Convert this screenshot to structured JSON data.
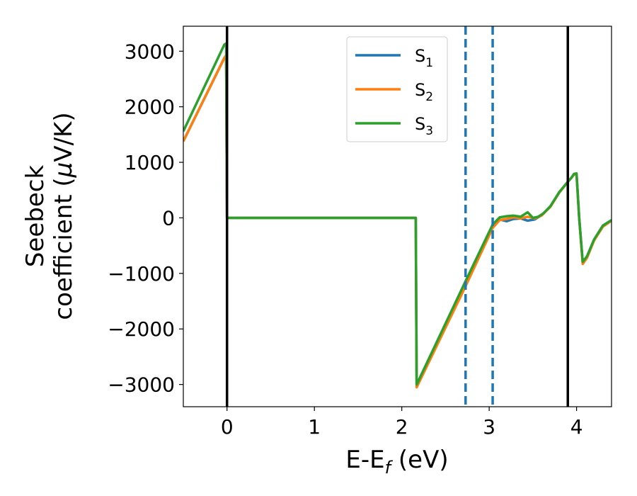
{
  "chart_data": {
    "type": "line",
    "xlabel": "E-E",
    "xlabel_sub": "f",
    "xlabel_unit": " (eV)",
    "ylabel_line1": "Seebeck",
    "ylabel_line2": "coefficient  (",
    "ylabel_mu": "μ",
    "ylabel_line2_end": "V/K)",
    "xlim": [
      -0.5,
      4.4
    ],
    "ylim": [
      -3400,
      3450
    ],
    "x_ticks": [
      0,
      1,
      2,
      3,
      4
    ],
    "x_tick_labels": [
      "0",
      "1",
      "2",
      "3",
      "4"
    ],
    "y_ticks": [
      -3000,
      -2000,
      -1000,
      0,
      1000,
      2000,
      3000
    ],
    "y_tick_labels": [
      "−3000",
      "−2000",
      "−1000",
      "0",
      "1000",
      "2000",
      "3000"
    ],
    "legend_position": "top-center",
    "vlines_solid": [
      0.0,
      3.9
    ],
    "vlines_dashed": [
      2.73,
      3.04
    ],
    "series": [
      {
        "name": "S",
        "sub": "1",
        "color": "#1f77b4",
        "x": [
          -0.5,
          -0.03,
          -0.01,
          0.0,
          2.16,
          2.17,
          2.73,
          3.04,
          3.12,
          3.2,
          3.28,
          3.36,
          3.44,
          3.52,
          3.6,
          3.7,
          3.8,
          3.9,
          3.94,
          3.97,
          4.0,
          4.03,
          4.07,
          4.12,
          4.2,
          4.3,
          4.4
        ],
        "y": [
          1380,
          2880,
          2920,
          0,
          0,
          -3030,
          -1200,
          -150,
          -30,
          -60,
          -20,
          -10,
          -50,
          -30,
          50,
          200,
          450,
          650,
          720,
          780,
          780,
          0,
          -800,
          -700,
          -400,
          -150,
          -50
        ]
      },
      {
        "name": "S",
        "sub": "2",
        "color": "#ff7f0e",
        "x": [
          -0.5,
          -0.03,
          -0.01,
          0.0,
          2.16,
          2.17,
          2.73,
          3.04,
          3.12,
          3.2,
          3.28,
          3.36,
          3.44,
          3.52,
          3.6,
          3.7,
          3.8,
          3.9,
          3.94,
          3.97,
          4.0,
          4.03,
          4.07,
          4.12,
          4.2,
          4.3,
          4.4
        ],
        "y": [
          1380,
          2880,
          2920,
          0,
          0,
          -3050,
          -1230,
          -180,
          -40,
          -20,
          10,
          -10,
          20,
          -10,
          40,
          200,
          450,
          650,
          720,
          780,
          780,
          0,
          -830,
          -720,
          -410,
          -160,
          -50
        ]
      },
      {
        "name": "S",
        "sub": "3",
        "color": "#2ca02c",
        "x": [
          -0.5,
          -0.03,
          -0.01,
          0.0,
          2.16,
          2.17,
          2.73,
          3.04,
          3.12,
          3.2,
          3.28,
          3.36,
          3.44,
          3.5,
          3.56,
          3.62,
          3.7,
          3.8,
          3.9,
          3.94,
          3.97,
          4.0,
          4.03,
          4.07,
          4.12,
          4.2,
          4.3,
          4.4
        ],
        "y": [
          1560,
          3120,
          3140,
          0,
          0,
          -3000,
          -1140,
          -120,
          10,
          30,
          40,
          20,
          100,
          0,
          20,
          80,
          210,
          460,
          650,
          720,
          790,
          800,
          0,
          -790,
          -690,
          -390,
          -140,
          -40
        ]
      }
    ]
  }
}
